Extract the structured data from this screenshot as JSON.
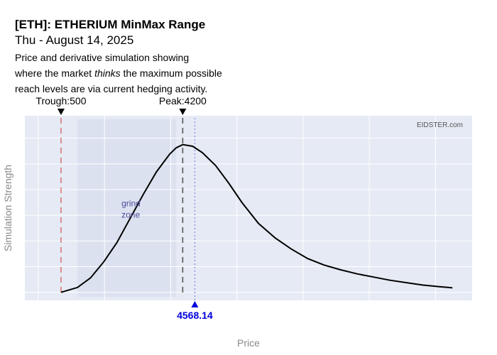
{
  "header": {
    "title": "[ETH]: ETHERIUM MinMax Range",
    "date": "Thu - August 14, 2025",
    "description_line1": "Price and derivative simulation showing",
    "description_line2_pre": "where the market ",
    "description_line2_em": "thinks",
    "description_line2_post": " the maximum possible",
    "description_line3": "reach levels are via current hedging activity."
  },
  "chart_data": {
    "type": "line",
    "xlabel": "Price",
    "ylabel": "Simulation Strength",
    "watermark": "EIDSTER.com",
    "xlim": [
      -600,
      13000
    ],
    "ylim": [
      -0.05,
      1.1
    ],
    "grid": true,
    "series": [
      {
        "x": [
          500,
          1000,
          1400,
          1800,
          2200,
          2600,
          3000,
          3400,
          3800,
          4000,
          4200,
          4500,
          4800,
          5200,
          5600,
          6000,
          6500,
          7000,
          7500,
          8000,
          8500,
          9000,
          9500,
          10000,
          10500,
          11000,
          11500,
          12000,
          12400
        ],
        "y": [
          0.0,
          0.03,
          0.09,
          0.19,
          0.31,
          0.46,
          0.61,
          0.75,
          0.86,
          0.9,
          0.92,
          0.91,
          0.87,
          0.79,
          0.68,
          0.56,
          0.43,
          0.34,
          0.27,
          0.21,
          0.17,
          0.14,
          0.115,
          0.095,
          0.075,
          0.06,
          0.045,
          0.035,
          0.028
        ],
        "color": "#000000"
      }
    ],
    "shaded_region": {
      "x0": 1000,
      "x1": 4000,
      "label_line1": "grind",
      "label_line2": "zone",
      "color": "#dbe1ef"
    },
    "markers": [
      {
        "label": "Trough:500",
        "x": 500,
        "color": "#cc3333",
        "style": "dashed"
      },
      {
        "label": "Peak:4200",
        "x": 4200,
        "color": "#555555",
        "style": "dashed"
      }
    ],
    "current": {
      "label": "4568.14",
      "x": 4568.14,
      "color": "#0000dd"
    },
    "colors": {
      "plot_bg": "#e5eaf4",
      "grid": "#ffffff",
      "axis_text": "#888888"
    }
  }
}
